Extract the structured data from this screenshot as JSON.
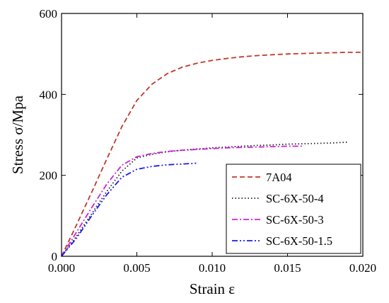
{
  "chart_data": {
    "type": "line",
    "xlabel": "Strain ε",
    "ylabel": "Stress σ/Mpa",
    "xlim": [
      0,
      0.02
    ],
    "ylim": [
      0,
      600
    ],
    "xticks": [
      "0.000",
      "0.005",
      "0.010",
      "0.015",
      "0.020"
    ],
    "yticks": [
      "0",
      "200",
      "400",
      "600"
    ],
    "grid": false,
    "legend_position": "bottom-right",
    "series": [
      {
        "name": "7A04",
        "color": "#c0392b",
        "style": "dashed",
        "x": [
          0,
          0.001,
          0.002,
          0.003,
          0.004,
          0.005,
          0.006,
          0.007,
          0.008,
          0.009,
          0.01,
          0.011,
          0.012,
          0.013,
          0.014,
          0.015,
          0.016,
          0.017,
          0.018,
          0.019,
          0.02
        ],
        "y": [
          0,
          78,
          158,
          240,
          320,
          385,
          425,
          451,
          467,
          477,
          484,
          489,
          493,
          496,
          498,
          500,
          501,
          502,
          503,
          504,
          504
        ]
      },
      {
        "name": "SC-6X-50-4",
        "color": "#222222",
        "style": "dotted",
        "x": [
          0,
          0.001,
          0.002,
          0.003,
          0.004,
          0.005,
          0.006,
          0.007,
          0.008,
          0.009,
          0.01,
          0.011,
          0.012,
          0.013,
          0.014,
          0.015,
          0.016,
          0.017,
          0.018,
          0.019
        ],
        "y": [
          0,
          50,
          105,
          160,
          210,
          243,
          252,
          258,
          262,
          265,
          268,
          270,
          272,
          274,
          275,
          277,
          278,
          279,
          280,
          282
        ]
      },
      {
        "name": "SC-6X-50-3",
        "color": "#cc22dd",
        "style": "dashdot",
        "x": [
          0,
          0.001,
          0.002,
          0.003,
          0.004,
          0.005,
          0.006,
          0.007,
          0.008,
          0.009,
          0.01,
          0.011,
          0.012,
          0.013,
          0.014,
          0.015,
          0.016
        ],
        "y": [
          0,
          60,
          120,
          178,
          225,
          246,
          254,
          259,
          262,
          264,
          266,
          268,
          269,
          270,
          271,
          272,
          272
        ]
      },
      {
        "name": "SC-6X-50-1.5",
        "color": "#1a1aee",
        "style": "dashdotdot",
        "x": [
          0,
          0.001,
          0.002,
          0.003,
          0.004,
          0.005,
          0.006,
          0.007,
          0.008,
          0.009
        ],
        "y": [
          0,
          45,
          100,
          152,
          195,
          215,
          222,
          226,
          228,
          230
        ]
      }
    ]
  }
}
